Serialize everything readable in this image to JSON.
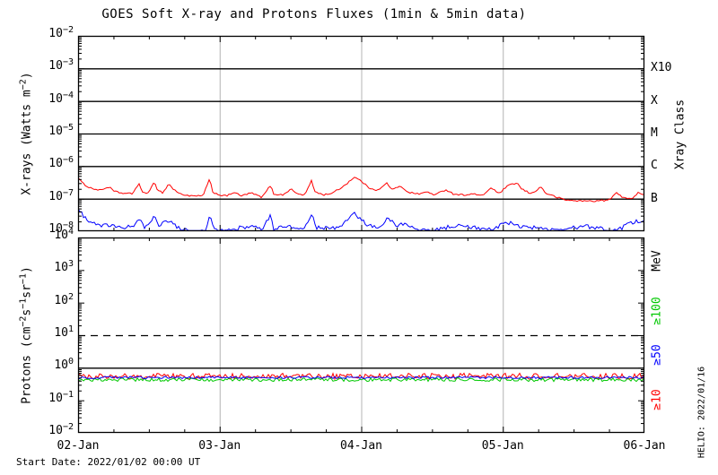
{
  "title": "GOES Soft X-ray and Protons Fluxes   (1min & 5min data)",
  "footer": {
    "start_date": "Start Date: 2022/01/02 00:00 UT"
  },
  "watermark": "HELIO: 2022/01/16",
  "colors": {
    "xray_long": "#ff0000",
    "xray_short": "#0000ff",
    "protons_ge10": "#ff0000",
    "protons_ge50": "#0000ff",
    "protons_ge100": "#00c800",
    "grid": "#b4b4b4",
    "axis": "#000000"
  },
  "chart_data": [
    {
      "type": "line",
      "name": "xray-panel",
      "ylabel_parts": [
        {
          "t": "X-rays (Watts m"
        },
        {
          "s": "-2"
        },
        {
          "t": ")"
        }
      ],
      "ylim": [
        1e-08,
        0.01
      ],
      "ytick_exponents": [
        -2,
        -3,
        -4,
        -5,
        -6,
        -7,
        -8
      ],
      "hline_exponents": [
        -3,
        -4,
        -5,
        -6,
        -7
      ],
      "right_axis": {
        "title": "Xray Class",
        "labels": [
          {
            "text": "X10",
            "exp": -3
          },
          {
            "text": "X",
            "exp": -4
          },
          {
            "text": "M",
            "exp": -5
          },
          {
            "text": "C",
            "exp": -6
          },
          {
            "text": "B",
            "exp": -7
          }
        ]
      },
      "x": {
        "tick_labels": [
          "02-Jan",
          "03-Jan",
          "04-Jan",
          "05-Jan",
          "06-Jan"
        ],
        "range_days": [
          0,
          4
        ],
        "day_gridlines": [
          1,
          2,
          3
        ],
        "minor_tick_hours": 6
      },
      "series": [
        {
          "name": "xray-long",
          "color": "#ff0000",
          "noise_log10": 0.025,
          "points": [
            [
              0.0,
              4.5e-07
            ],
            [
              0.03,
              3e-07
            ],
            [
              0.08,
              2.2e-07
            ],
            [
              0.15,
              1.8e-07
            ],
            [
              0.22,
              2.3e-07
            ],
            [
              0.25,
              1.7e-07
            ],
            [
              0.3,
              1.5e-07
            ],
            [
              0.38,
              1.4e-07
            ],
            [
              0.43,
              2.9e-07
            ],
            [
              0.45,
              1.6e-07
            ],
            [
              0.5,
              1.5e-07
            ],
            [
              0.54,
              3.4e-07
            ],
            [
              0.56,
              1.9e-07
            ],
            [
              0.6,
              1.5e-07
            ],
            [
              0.64,
              2.9e-07
            ],
            [
              0.67,
              2e-07
            ],
            [
              0.72,
              1.4e-07
            ],
            [
              0.8,
              1.2e-07
            ],
            [
              0.88,
              1.2e-07
            ],
            [
              0.93,
              4e-07
            ],
            [
              0.95,
              1.6e-07
            ],
            [
              1.0,
              1.3e-07
            ],
            [
              1.05,
              1.2e-07
            ],
            [
              1.1,
              1.6e-07
            ],
            [
              1.15,
              1.2e-07
            ],
            [
              1.22,
              1.5e-07
            ],
            [
              1.3,
              1.1e-07
            ],
            [
              1.36,
              2.6e-07
            ],
            [
              1.38,
              1.4e-07
            ],
            [
              1.45,
              1.3e-07
            ],
            [
              1.5,
              2e-07
            ],
            [
              1.55,
              1.4e-07
            ],
            [
              1.6,
              1.3e-07
            ],
            [
              1.65,
              3.6e-07
            ],
            [
              1.67,
              1.7e-07
            ],
            [
              1.73,
              1.3e-07
            ],
            [
              1.8,
              1.5e-07
            ],
            [
              1.88,
              2.5e-07
            ],
            [
              1.95,
              4.6e-07
            ],
            [
              2.0,
              3.5e-07
            ],
            [
              2.05,
              2.2e-07
            ],
            [
              2.12,
              1.8e-07
            ],
            [
              2.18,
              3e-07
            ],
            [
              2.22,
              1.9e-07
            ],
            [
              2.28,
              2.4e-07
            ],
            [
              2.33,
              1.6e-07
            ],
            [
              2.4,
              1.4e-07
            ],
            [
              2.47,
              1.6e-07
            ],
            [
              2.52,
              1.3e-07
            ],
            [
              2.6,
              1.9e-07
            ],
            [
              2.65,
              1.4e-07
            ],
            [
              2.72,
              1.3e-07
            ],
            [
              2.8,
              1.4e-07
            ],
            [
              2.85,
              1.2e-07
            ],
            [
              2.92,
              2.2e-07
            ],
            [
              2.97,
              1.4e-07
            ],
            [
              3.03,
              2.4e-07
            ],
            [
              3.1,
              3.1e-07
            ],
            [
              3.13,
              2e-07
            ],
            [
              3.2,
              1.4e-07
            ],
            [
              3.27,
              2.3e-07
            ],
            [
              3.3,
              1.5e-07
            ],
            [
              3.38,
              1.1e-07
            ],
            [
              3.45,
              9e-08
            ],
            [
              3.55,
              8.5e-08
            ],
            [
              3.65,
              8.5e-08
            ],
            [
              3.75,
              9e-08
            ],
            [
              3.8,
              1.5e-07
            ],
            [
              3.85,
              1.1e-07
            ],
            [
              3.92,
              1e-07
            ],
            [
              3.96,
              1.6e-07
            ],
            [
              4.0,
              1.3e-07
            ]
          ]
        },
        {
          "name": "xray-short",
          "color": "#0000ff",
          "noise_log10": 0.06,
          "points": [
            [
              0.0,
              5e-08
            ],
            [
              0.05,
              2.5e-08
            ],
            [
              0.1,
              1.8e-08
            ],
            [
              0.18,
              1.5e-08
            ],
            [
              0.25,
              1.4e-08
            ],
            [
              0.33,
              1.2e-08
            ],
            [
              0.4,
              1.6e-08
            ],
            [
              0.43,
              2.6e-08
            ],
            [
              0.47,
              1.3e-08
            ],
            [
              0.54,
              3e-08
            ],
            [
              0.57,
              1.5e-08
            ],
            [
              0.64,
              2.2e-08
            ],
            [
              0.7,
              1.3e-08
            ],
            [
              0.8,
              1e-08
            ],
            [
              0.9,
              1e-08
            ],
            [
              0.93,
              3e-08
            ],
            [
              0.96,
              1.1e-08
            ],
            [
              1.05,
              1e-08
            ],
            [
              1.15,
              1.3e-08
            ],
            [
              1.25,
              1.4e-08
            ],
            [
              1.3,
              1.1e-08
            ],
            [
              1.36,
              3.3e-08
            ],
            [
              1.38,
              1.2e-08
            ],
            [
              1.5,
              1.4e-08
            ],
            [
              1.6,
              1.2e-08
            ],
            [
              1.65,
              3.4e-08
            ],
            [
              1.68,
              1.3e-08
            ],
            [
              1.8,
              1.2e-08
            ],
            [
              1.9,
              2e-08
            ],
            [
              1.95,
              3.4e-08
            ],
            [
              2.0,
              2.4e-08
            ],
            [
              2.05,
              1.5e-08
            ],
            [
              2.15,
              1.3e-08
            ],
            [
              2.18,
              2.8e-08
            ],
            [
              2.25,
              1.4e-08
            ],
            [
              2.3,
              1.8e-08
            ],
            [
              2.4,
              1.1e-08
            ],
            [
              2.5,
              1e-08
            ],
            [
              2.6,
              1.3e-08
            ],
            [
              2.7,
              1.6e-08
            ],
            [
              2.8,
              1.3e-08
            ],
            [
              2.9,
              1.1e-08
            ],
            [
              3.0,
              1.6e-08
            ],
            [
              3.05,
              1.8e-08
            ],
            [
              3.1,
              1.5e-08
            ],
            [
              3.2,
              1.3e-08
            ],
            [
              3.3,
              1.2e-08
            ],
            [
              3.4,
              1e-08
            ],
            [
              3.5,
              1.3e-08
            ],
            [
              3.6,
              1.4e-08
            ],
            [
              3.7,
              1.2e-08
            ],
            [
              3.8,
              1e-08
            ],
            [
              3.9,
              1.8e-08
            ],
            [
              3.95,
              2e-08
            ],
            [
              4.0,
              1.8e-08
            ]
          ]
        }
      ]
    },
    {
      "type": "line",
      "name": "protons-panel",
      "ylabel_parts": [
        {
          "t": "Protons (cm"
        },
        {
          "s": "-2"
        },
        {
          "t": "s"
        },
        {
          "s": "-1"
        },
        {
          "t": "sr"
        },
        {
          "s": "-1"
        },
        {
          "t": ")"
        }
      ],
      "ylim": [
        0.01,
        10000
      ],
      "ytick_exponents": [
        4,
        3,
        2,
        1,
        0,
        -1,
        -2
      ],
      "hlines": {
        "solid_exponents": [
          0
        ],
        "dashed_exponents": [
          1
        ]
      },
      "right_axis": {
        "unit": "MeV",
        "labels": [
          {
            "text": "≥100",
            "color": "#00c800"
          },
          {
            "text": "≥50",
            "color": "#0000ff"
          },
          {
            "text": "≥10",
            "color": "#ff0000"
          }
        ]
      },
      "x": {
        "tick_labels": [
          "02-Jan",
          "03-Jan",
          "04-Jan",
          "05-Jan",
          "06-Jan"
        ],
        "range_days": [
          0,
          4
        ],
        "day_gridlines": [
          1,
          2,
          3
        ],
        "minor_tick_hours": 6
      },
      "series": [
        {
          "name": "protons-ge10",
          "color": "#ff0000",
          "baseline": 0.55,
          "noise_log10": 0.09
        },
        {
          "name": "protons-ge100",
          "color": "#00c800",
          "baseline": 0.43,
          "noise_log10": 0.055
        },
        {
          "name": "protons-ge50",
          "color": "#0000ff",
          "baseline": 0.5,
          "noise_log10": 0.035
        }
      ]
    }
  ]
}
